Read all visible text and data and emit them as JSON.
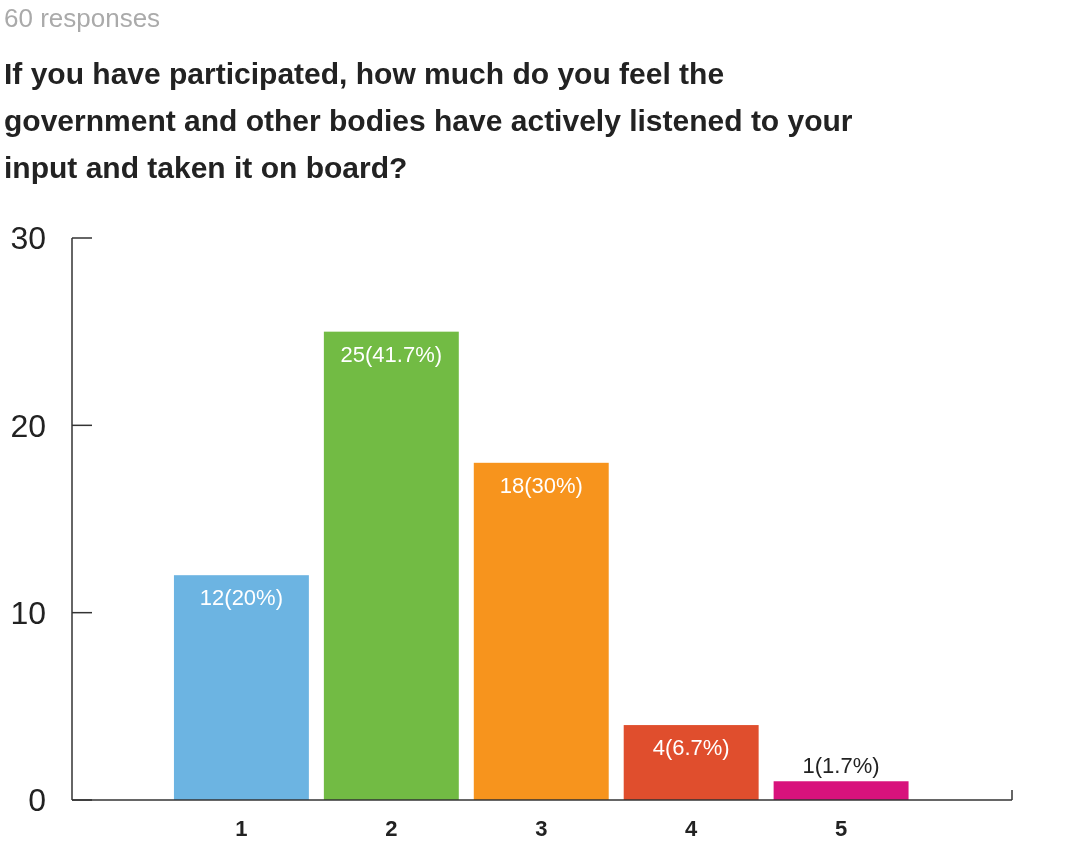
{
  "chart_data": {
    "type": "bar",
    "subtitle": "60 responses",
    "title": "If you have participated, how much do you feel the government and other bodies have actively listened to your input and taken it on board?",
    "categories": [
      "1",
      "2",
      "3",
      "4",
      "5"
    ],
    "values": [
      12,
      25,
      18,
      4,
      1
    ],
    "colors": [
      "#6cb4e2",
      "#72bb44",
      "#f7941d",
      "#e04e2d",
      "#d8127c"
    ],
    "value_labels": [
      "12(20%)",
      "25(41.7%)",
      "18(30%)",
      "4(6.7%)",
      "1(1.7%)"
    ],
    "ylim": [
      0,
      30
    ],
    "yticks": [
      0,
      10,
      20,
      30
    ]
  }
}
